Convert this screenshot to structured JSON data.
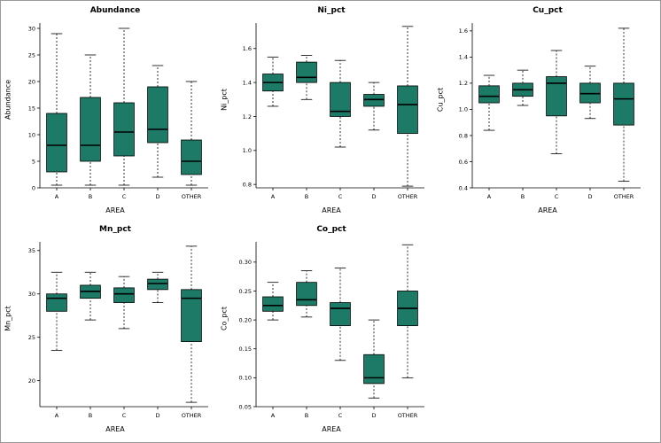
{
  "page": {
    "background": "#ffffff",
    "border_color": "#9a9a9a"
  },
  "colors": {
    "box_fill": "#1d7a66",
    "box_stroke": "#000000",
    "median": "#000000",
    "axis": "#000000",
    "text": "#000000"
  },
  "chart_data": [
    {
      "type": "box",
      "title": "Abundance",
      "xlabel": "AREA",
      "ylabel": "Abundance",
      "categories": [
        "A",
        "B",
        "C",
        "D",
        "OTHER"
      ],
      "ylim": [
        0,
        31
      ],
      "yticks": [
        0,
        5,
        10,
        15,
        20,
        25,
        30
      ],
      "ytick_labels": [
        "0",
        "5",
        "10",
        "15",
        "20",
        "25",
        "30"
      ],
      "legend": "none",
      "grid": false,
      "boxes": [
        {
          "low": 0.5,
          "q1": 3,
          "median": 8,
          "q3": 14,
          "high": 29
        },
        {
          "low": 0.5,
          "q1": 5,
          "median": 8,
          "q3": 17,
          "high": 25
        },
        {
          "low": 0.5,
          "q1": 6,
          "median": 10.5,
          "q3": 16,
          "high": 30
        },
        {
          "low": 2,
          "q1": 8.5,
          "median": 11,
          "q3": 19,
          "high": 23
        },
        {
          "low": 0.5,
          "q1": 2.5,
          "median": 5,
          "q3": 9,
          "high": 20
        }
      ]
    },
    {
      "type": "box",
      "title": "Ni_pct",
      "xlabel": "AREA",
      "ylabel": "Ni_pct",
      "categories": [
        "A",
        "B",
        "C",
        "D",
        "OTHER"
      ],
      "ylim": [
        0.78,
        1.75
      ],
      "yticks": [
        0.8,
        1.0,
        1.2,
        1.4,
        1.6
      ],
      "ytick_labels": [
        "0.8",
        "1.0",
        "1.2",
        "1.4",
        "1.6"
      ],
      "legend": "none",
      "grid": false,
      "boxes": [
        {
          "low": 1.26,
          "q1": 1.35,
          "median": 1.4,
          "q3": 1.45,
          "high": 1.55
        },
        {
          "low": 1.3,
          "q1": 1.4,
          "median": 1.43,
          "q3": 1.52,
          "high": 1.56
        },
        {
          "low": 1.02,
          "q1": 1.2,
          "median": 1.23,
          "q3": 1.4,
          "high": 1.53
        },
        {
          "low": 1.12,
          "q1": 1.26,
          "median": 1.3,
          "q3": 1.33,
          "high": 1.4
        },
        {
          "low": 0.79,
          "q1": 1.1,
          "median": 1.27,
          "q3": 1.38,
          "high": 1.73
        }
      ]
    },
    {
      "type": "box",
      "title": "Cu_pct",
      "xlabel": "AREA",
      "ylabel": "Cu_pct",
      "categories": [
        "A",
        "B",
        "C",
        "D",
        "OTHER"
      ],
      "ylim": [
        0.4,
        1.66
      ],
      "yticks": [
        0.4,
        0.6,
        0.8,
        1.0,
        1.2,
        1.4,
        1.6
      ],
      "ytick_labels": [
        "0.4",
        "0.6",
        "0.8",
        "1.0",
        "1.2",
        "1.4",
        "1.6"
      ],
      "legend": "none",
      "grid": false,
      "boxes": [
        {
          "low": 0.84,
          "q1": 1.05,
          "median": 1.1,
          "q3": 1.18,
          "high": 1.26
        },
        {
          "low": 1.03,
          "q1": 1.1,
          "median": 1.15,
          "q3": 1.2,
          "high": 1.3
        },
        {
          "low": 0.66,
          "q1": 0.95,
          "median": 1.2,
          "q3": 1.25,
          "high": 1.45
        },
        {
          "low": 0.93,
          "q1": 1.05,
          "median": 1.12,
          "q3": 1.2,
          "high": 1.33
        },
        {
          "low": 0.45,
          "q1": 0.88,
          "median": 1.08,
          "q3": 1.2,
          "high": 1.62
        }
      ]
    },
    {
      "type": "box",
      "title": "Mn_pct",
      "xlabel": "AREA",
      "ylabel": "Mn_pct",
      "categories": [
        "A",
        "B",
        "C",
        "D",
        "OTHER"
      ],
      "ylim": [
        17,
        36
      ],
      "yticks": [
        20,
        25,
        30,
        35
      ],
      "ytick_labels": [
        "20",
        "25",
        "30",
        "35"
      ],
      "legend": "none",
      "grid": false,
      "boxes": [
        {
          "low": 23.5,
          "q1": 28.0,
          "median": 29.5,
          "q3": 30.0,
          "high": 32.5
        },
        {
          "low": 27.0,
          "q1": 29.5,
          "median": 30.3,
          "q3": 31.0,
          "high": 32.5
        },
        {
          "low": 26.0,
          "q1": 29.0,
          "median": 30.0,
          "q3": 30.7,
          "high": 32.0
        },
        {
          "low": 29.0,
          "q1": 30.5,
          "median": 31.2,
          "q3": 31.7,
          "high": 32.5
        },
        {
          "low": 17.5,
          "q1": 24.5,
          "median": 29.5,
          "q3": 30.5,
          "high": 35.5
        }
      ]
    },
    {
      "type": "box",
      "title": "Co_pct",
      "xlabel": "AREA",
      "ylabel": "Co_pct",
      "categories": [
        "A",
        "B",
        "C",
        "D",
        "OTHER"
      ],
      "ylim": [
        0.05,
        0.335
      ],
      "yticks": [
        0.05,
        0.1,
        0.15,
        0.2,
        0.25,
        0.3
      ],
      "ytick_labels": [
        "0.05",
        "0.10",
        "0.15",
        "0.20",
        "0.25",
        "0.30"
      ],
      "legend": "none",
      "grid": false,
      "boxes": [
        {
          "low": 0.2,
          "q1": 0.215,
          "median": 0.225,
          "q3": 0.24,
          "high": 0.265
        },
        {
          "low": 0.205,
          "q1": 0.225,
          "median": 0.235,
          "q3": 0.265,
          "high": 0.285
        },
        {
          "low": 0.13,
          "q1": 0.19,
          "median": 0.22,
          "q3": 0.23,
          "high": 0.29
        },
        {
          "low": 0.065,
          "q1": 0.09,
          "median": 0.1,
          "q3": 0.14,
          "high": 0.2
        },
        {
          "low": 0.1,
          "q1": 0.19,
          "median": 0.22,
          "q3": 0.25,
          "high": 0.33
        }
      ]
    }
  ]
}
